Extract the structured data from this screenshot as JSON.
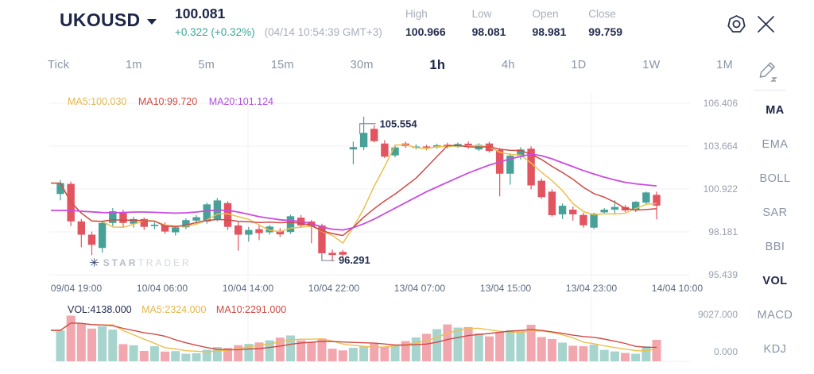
{
  "header": {
    "symbol": "UKOUSD",
    "price": "100.081",
    "change": "+0.322 (+0.32%)",
    "timestamp": "(04/14 10:54:39 GMT+3)",
    "stats": [
      {
        "label": "High",
        "value": "100.966"
      },
      {
        "label": "Low",
        "value": "98.081"
      },
      {
        "label": "Open",
        "value": "98.981"
      },
      {
        "label": "Close",
        "value": "99.759"
      }
    ],
    "icons": {
      "settings": "settings-icon",
      "close": "close-icon"
    }
  },
  "timeframes": {
    "items": [
      "Tick",
      "1m",
      "5m",
      "15m",
      "30m",
      "1h",
      "4h",
      "1D",
      "1W",
      "1M"
    ],
    "active": "1h"
  },
  "sidebar": {
    "edit_icon": "indicator-edit-pencil",
    "indicators": [
      {
        "label": "MA",
        "active": true
      },
      {
        "label": "EMA",
        "active": false
      },
      {
        "label": "BOLL",
        "active": false
      },
      {
        "label": "SAR",
        "active": false
      },
      {
        "label": "BBI",
        "active": false
      },
      {
        "label": "VOL",
        "active": true
      },
      {
        "label": "MACD",
        "active": false
      },
      {
        "label": "KDJ",
        "active": false
      }
    ]
  },
  "watermark": {
    "star": "✳",
    "bold": "STAR",
    "light": "TRADER"
  },
  "chart_data": {
    "type": "candlestick",
    "legend": {
      "ma5": "MA5:100.030",
      "ma10": "MA10:99.720",
      "ma20": "MA20:101.124"
    },
    "volume_legend": {
      "vol": "VOL:4138.000",
      "ma5": "MA5:2324.000",
      "ma10": "MA10:2291.000"
    },
    "y_axis_labels": [
      "106.406",
      "103.664",
      "100.922",
      "98.181",
      "95.439"
    ],
    "volume_axis": {
      "labels": [
        "9027.000",
        "0.000"
      ],
      "max": 9027
    },
    "x_labels": [
      "09/04 19:00",
      "10/04 06:00",
      "10/04 14:00",
      "10/04 22:00",
      "13/04 07:00",
      "13/04 15:00",
      "13/04 23:00",
      "14/04 10:00"
    ],
    "annotations": {
      "high": {
        "index": 29,
        "text": "105.554",
        "value": 105.554
      },
      "low": {
        "index": 25,
        "text": "96.291",
        "value": 96.291
      }
    },
    "colors": {
      "up": "#47a198",
      "down": "#e2545f",
      "vol_up": "#a7d4cd",
      "vol_down": "#f2a6ae",
      "ma5": "#ecc04d",
      "ma10": "#d04a45",
      "ma20": "#c94be0",
      "grid": "#f0f1f4",
      "axis_text": "#98a0af",
      "date_text": "#5e6a83",
      "annotation_line": "#8a90a0",
      "annotation_text": "#242e4e"
    },
    "candles": [
      [
        100.6,
        101.5,
        100.2,
        101.3
      ],
      [
        101.25,
        101.4,
        98.55,
        98.85
      ],
      [
        98.85,
        99.0,
        97.2,
        98.0
      ],
      [
        98.0,
        98.2,
        96.7,
        97.35
      ],
      [
        97.15,
        98.9,
        96.85,
        98.75
      ],
      [
        98.75,
        99.7,
        98.55,
        99.5
      ],
      [
        99.45,
        99.6,
        98.5,
        98.75
      ],
      [
        98.7,
        99.15,
        98.45,
        99.0
      ],
      [
        99.0,
        99.1,
        98.3,
        98.5
      ],
      [
        98.55,
        98.8,
        98.35,
        98.64
      ],
      [
        98.64,
        98.8,
        98.05,
        98.2
      ],
      [
        98.15,
        98.5,
        97.95,
        98.47
      ],
      [
        98.47,
        99.05,
        98.35,
        98.93
      ],
      [
        98.9,
        99.25,
        98.7,
        99.12
      ],
      [
        98.84,
        100.05,
        98.7,
        99.94
      ],
      [
        99.0,
        100.35,
        98.85,
        100.19
      ],
      [
        100.02,
        100.15,
        98.3,
        98.5
      ],
      [
        98.59,
        98.8,
        96.98,
        98.0
      ],
      [
        98.0,
        98.5,
        97.55,
        98.3
      ],
      [
        98.35,
        98.65,
        97.65,
        98.1
      ],
      [
        98.15,
        98.62,
        98.0,
        98.52
      ],
      [
        98.25,
        98.42,
        97.85,
        98.02
      ],
      [
        98.17,
        99.28,
        98.05,
        99.18
      ],
      [
        99.09,
        99.25,
        98.45,
        98.59
      ],
      [
        98.84,
        98.95,
        97.45,
        98.5
      ],
      [
        98.59,
        98.7,
        96.35,
        96.81
      ],
      [
        96.84,
        97.05,
        96.291,
        96.7
      ],
      [
        96.9,
        97.02,
        96.55,
        96.72
      ],
      [
        103.45,
        103.95,
        102.5,
        103.6
      ],
      [
        103.6,
        105.554,
        103.4,
        104.51
      ],
      [
        104.77,
        105.0,
        103.9,
        103.98
      ],
      [
        103.83,
        104.05,
        102.9,
        102.99
      ],
      [
        103.07,
        103.7,
        102.95,
        103.58
      ],
      [
        103.83,
        103.95,
        103.55,
        103.66
      ],
      [
        103.55,
        103.78,
        103.45,
        103.64
      ],
      [
        103.64,
        103.75,
        103.4,
        103.58
      ],
      [
        103.58,
        103.82,
        103.5,
        103.72
      ],
      [
        103.75,
        103.88,
        103.52,
        103.62
      ],
      [
        103.62,
        103.9,
        103.55,
        103.8
      ],
      [
        103.82,
        103.95,
        103.5,
        103.6
      ],
      [
        103.45,
        103.85,
        103.35,
        103.75
      ],
      [
        103.83,
        103.95,
        103.25,
        103.35
      ],
      [
        103.41,
        103.55,
        100.45,
        101.9
      ],
      [
        101.9,
        103.2,
        101.2,
        103.05
      ],
      [
        103.05,
        103.6,
        102.8,
        103.45
      ],
      [
        103.5,
        103.65,
        100.9,
        101.15
      ],
      [
        101.45,
        101.6,
        100.3,
        100.4
      ],
      [
        100.75,
        100.9,
        99.15,
        99.25
      ],
      [
        99.3,
        100.0,
        99.0,
        99.85
      ],
      [
        99.6,
        99.8,
        98.9,
        99.3
      ],
      [
        99.26,
        99.4,
        98.45,
        98.6
      ],
      [
        98.45,
        99.4,
        98.35,
        99.35
      ],
      [
        99.43,
        99.7,
        99.3,
        99.6
      ],
      [
        99.6,
        100.2,
        99.3,
        99.77
      ],
      [
        99.77,
        99.9,
        99.45,
        99.55
      ],
      [
        99.55,
        100.15,
        99.45,
        100.1
      ],
      [
        100.05,
        100.75,
        99.95,
        100.7
      ],
      [
        100.55,
        100.75,
        98.98,
        99.86
      ]
    ],
    "volumes": [
      5960,
      8800,
      7200,
      6300,
      6740,
      6100,
      3300,
      3100,
      2000,
      2900,
      1870,
      1960,
      1450,
      1560,
      2230,
      2740,
      2580,
      3110,
      3360,
      3630,
      4040,
      4560,
      4980,
      4040,
      3670,
      4400,
      2430,
      2100,
      2600,
      2900,
      3400,
      2800,
      3100,
      3900,
      4600,
      5300,
      6200,
      7100,
      6500,
      6600,
      5400,
      4800,
      5600,
      6000,
      5860,
      7050,
      4670,
      4300,
      3600,
      3000,
      2900,
      3200,
      2200,
      1900,
      1600,
      1450,
      2900,
      4138
    ],
    "ma20": [
      99.55,
      99.55,
      99.5,
      99.46,
      99.42,
      99.4,
      99.42,
      99.45,
      99.45,
      99.43,
      99.4,
      99.38,
      99.4,
      99.45,
      99.52,
      99.58,
      99.55,
      99.45,
      99.3,
      99.15,
      99.05,
      98.95,
      98.9,
      98.85,
      98.7,
      98.5,
      98.35,
      98.3,
      98.45,
      98.7,
      99.0,
      99.35,
      99.7,
      100.05,
      100.4,
      100.75,
      101.05,
      101.35,
      101.65,
      101.95,
      102.2,
      102.45,
      102.65,
      102.85,
      103.0,
      103.15,
      103.05,
      102.85,
      102.6,
      102.35,
      102.1,
      101.88,
      101.68,
      101.5,
      101.35,
      101.25,
      101.18,
      101.12
    ]
  }
}
